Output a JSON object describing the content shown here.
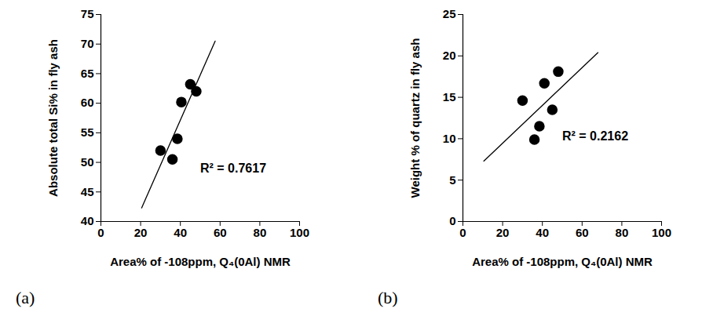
{
  "chart_data": [
    {
      "type": "scatter",
      "panel": "(a)",
      "x_label": "Area% of -108ppm, Q₄(0Al) NMR",
      "y_label": "Absolute total Si% in fly ash",
      "x": [
        30,
        36,
        38.5,
        40.5,
        45,
        48
      ],
      "values": [
        52,
        50.5,
        54,
        60.2,
        63.2,
        62
      ],
      "color": "#000000",
      "marker": "circle",
      "trendline": {
        "x": [
          20.5,
          57.5
        ],
        "y": [
          42.3,
          70.5
        ]
      },
      "annotations": [
        {
          "text": "R² = 0.7617",
          "x": 50,
          "y": 49
        }
      ],
      "xlim": [
        0,
        100
      ],
      "xticks": [
        0,
        20,
        40,
        60,
        80,
        100
      ],
      "ylim": [
        40,
        75
      ],
      "yticks": [
        40,
        45,
        50,
        55,
        60,
        65,
        70,
        75
      ]
    },
    {
      "type": "scatter",
      "panel": "(b)",
      "x_label": "Area% of -108ppm, Q₄(0Al) NMR",
      "y_label": "Weight % of quartz in fly ash",
      "x": [
        30,
        36,
        38.5,
        41,
        45,
        48
      ],
      "values": [
        14.6,
        9.9,
        11.5,
        16.7,
        13.5,
        18.1
      ],
      "color": "#000000",
      "marker": "circle",
      "trendline": {
        "x": [
          10.5,
          68
        ],
        "y": [
          7.3,
          20.4
        ]
      },
      "annotations": [
        {
          "text": "R² = 0.2162",
          "x": 50,
          "y": 10.3
        }
      ],
      "xlim": [
        0,
        100
      ],
      "xticks": [
        0,
        20,
        40,
        60,
        80,
        100
      ],
      "ylim": [
        0,
        25
      ],
      "yticks": [
        0,
        5,
        10,
        15,
        20,
        25
      ]
    }
  ]
}
